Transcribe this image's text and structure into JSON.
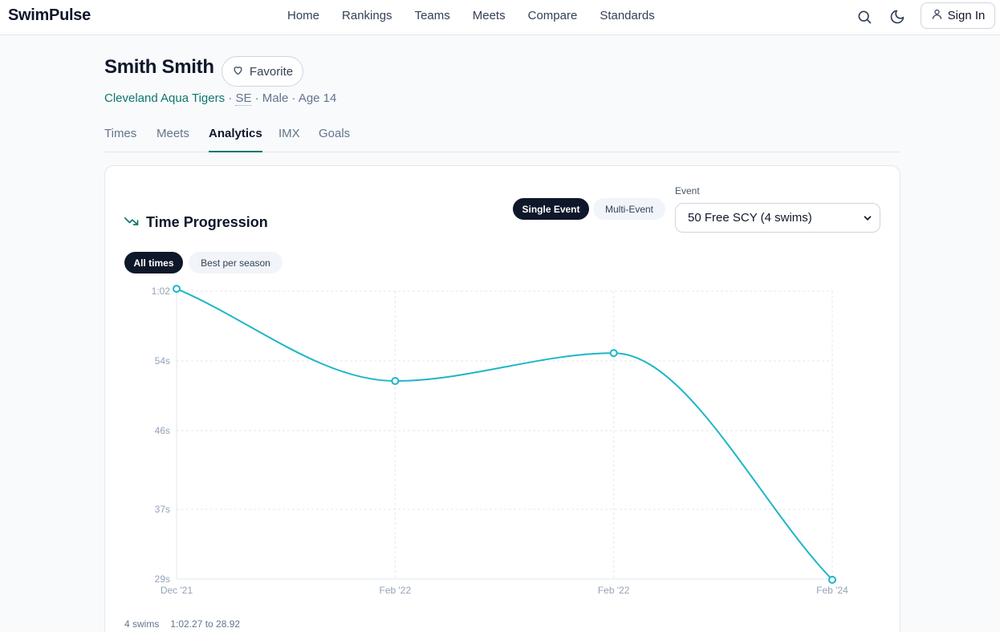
{
  "app": {
    "brand": "SwimPulse"
  },
  "nav": {
    "links": [
      "Home",
      "Rankings",
      "Teams",
      "Meets",
      "Compare",
      "Standards"
    ],
    "sign_in": "Sign In",
    "search_icon": "search-icon",
    "theme_icon": "moon-icon",
    "user_icon": "user-icon"
  },
  "swimmer": {
    "name": "Smith Smith",
    "favorite_label": "Favorite",
    "team": "Cleveland Aqua Tigers",
    "sep1": " · ",
    "region": "SE",
    "details": " · Male · Age 14"
  },
  "tabs": [
    {
      "label": "Times",
      "active": false
    },
    {
      "label": "Meets",
      "active": false
    },
    {
      "label": "Analytics",
      "active": true
    },
    {
      "label": "IMX",
      "active": false
    },
    {
      "label": "Goals",
      "active": false
    }
  ],
  "panel": {
    "title": "Time Progression",
    "title_icon": "trending-down-icon",
    "mode_single": "Single Event",
    "mode_multi": "Multi-Event",
    "event_label": "Event",
    "event_value": "50 Free SCY (4 swims)",
    "filter_all": "All times",
    "filter_best": "Best per season",
    "swim_count": "4 swims",
    "range_text": "1:02.27 to 28.92"
  },
  "colors": {
    "accent": "#0f766e",
    "line": "#1fb5c7",
    "dark": "#0f172a"
  },
  "chart_data": {
    "type": "line",
    "title": "Time Progression",
    "x": [
      "Dec '21",
      "Feb '22",
      "Feb '22",
      "Feb '24"
    ],
    "series": [
      {
        "values": [
          62.27,
          51.7,
          54.9,
          28.92
        ]
      }
    ],
    "y_tick_labels": [
      "29s",
      "37s",
      "46s",
      "54s",
      "1:02"
    ],
    "y_ticks": [
      29,
      37,
      46,
      54,
      62
    ],
    "ylim": [
      29,
      62
    ],
    "grid": true,
    "legend": "none"
  }
}
